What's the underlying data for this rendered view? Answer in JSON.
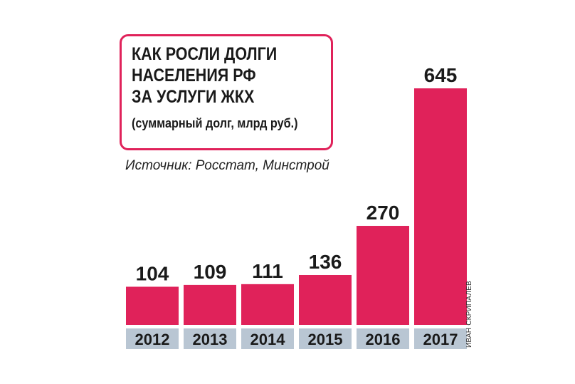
{
  "title_lines": [
    "КАК РОСЛИ ДОЛГИ",
    "НАСЕЛЕНИЯ РФ",
    "ЗА УСЛУГИ ЖКХ"
  ],
  "subtitle": "(суммарный долг, млрд руб.)",
  "source": "Источник: Росстат, Минстрой",
  "credit": "ИВАН СКРИПАЛЕВ",
  "colors": {
    "bar": "#e0225a",
    "year_box": "#b9c6d3",
    "frame": "#e0225a",
    "text": "#1a1a1a"
  },
  "chart_data": {
    "type": "bar",
    "categories": [
      "2012",
      "2013",
      "2014",
      "2015",
      "2016",
      "2017"
    ],
    "values": [
      104,
      109,
      111,
      136,
      270,
      645
    ],
    "data_labels": [
      "104",
      "109",
      "111",
      "136",
      "270",
      "645"
    ],
    "title": "КАК РОСЛИ ДОЛГИ НАСЕЛЕНИЯ РФ ЗА УСЛУГИ ЖКХ",
    "subtitle": "(суммарный долг, млрд руб.)",
    "xlabel": "",
    "ylabel": "",
    "ylim": [
      0,
      645
    ],
    "grid": false,
    "legend": "none"
  }
}
